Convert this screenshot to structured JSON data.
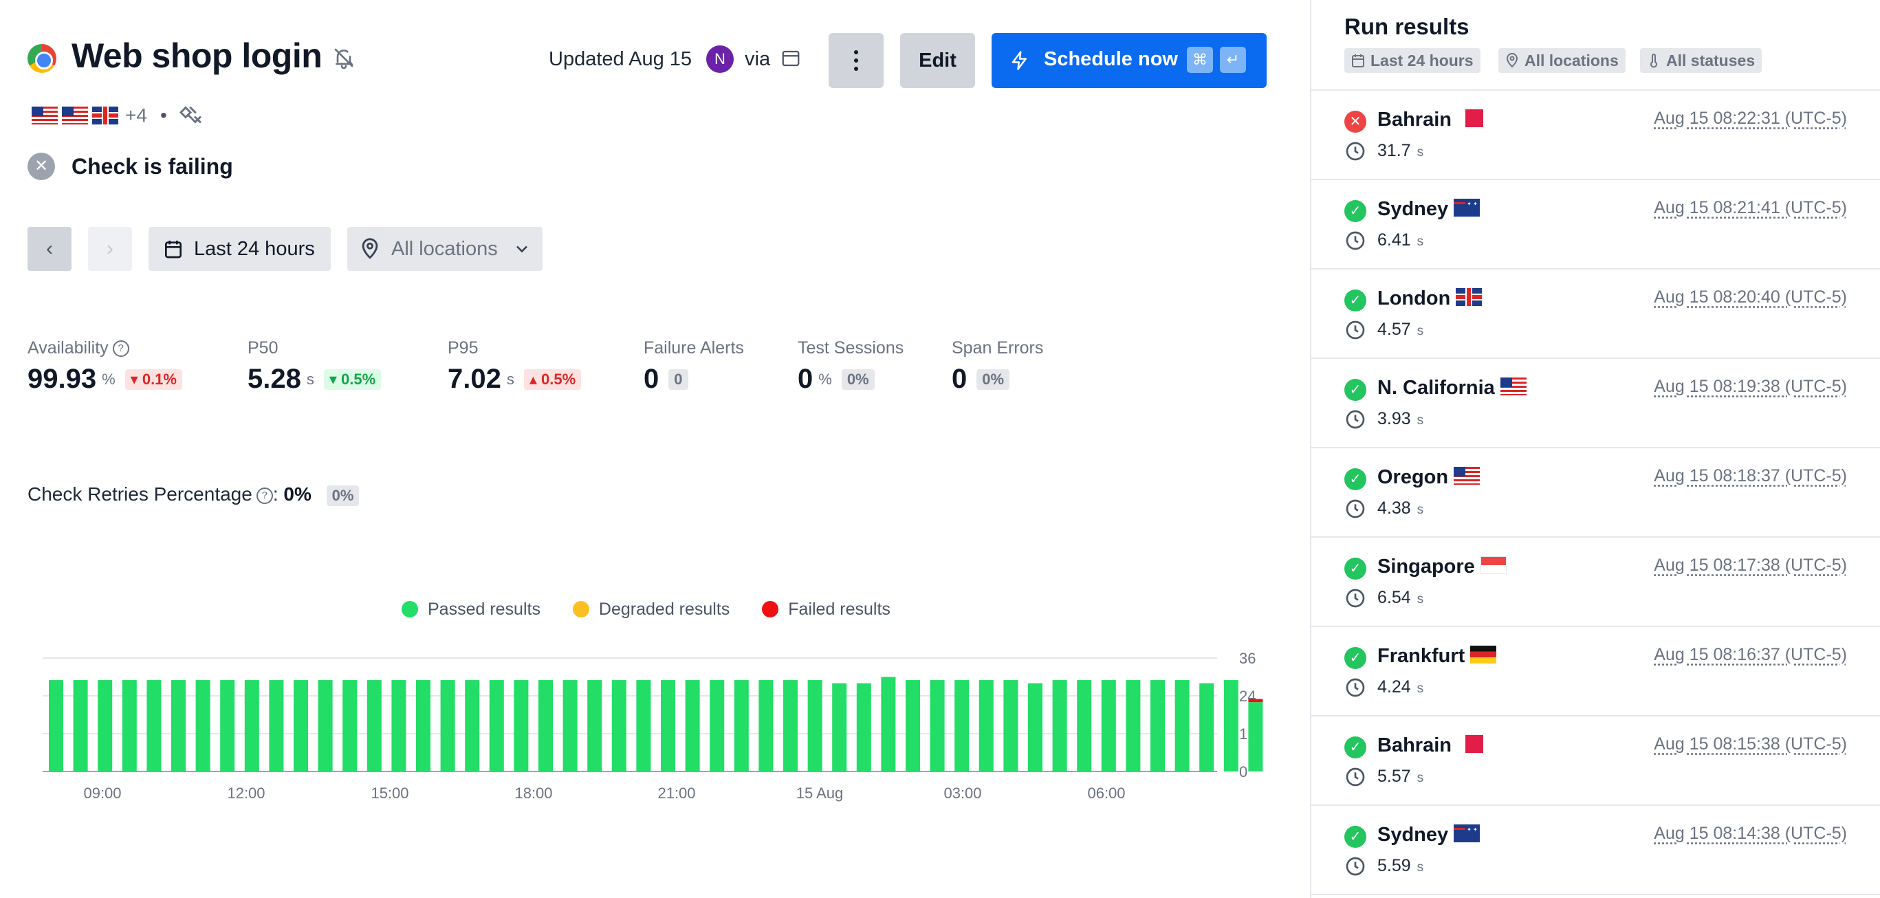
{
  "header": {
    "title": "Web shop login",
    "browser_icon": "chrome-icon",
    "updated": "Updated Aug 15",
    "avatar_initial": "N",
    "via": "via",
    "edit_label": "Edit",
    "schedule_label": "Schedule now",
    "schedule_shortcut": [
      "⌘",
      "↵"
    ],
    "more_flags": "+4",
    "separator": "•"
  },
  "status": {
    "text": "Check is failing",
    "icon": "x-icon"
  },
  "filters": {
    "range": "Last 24 hours",
    "location": "All locations"
  },
  "metrics": [
    {
      "label": "Availability",
      "value": "99.93",
      "unit": "%",
      "delta": "0.1%",
      "delta_dir": "down",
      "delta_kind": "bad",
      "help": true
    },
    {
      "label": "P50",
      "value": "5.28",
      "unit": "s",
      "delta": "0.5%",
      "delta_dir": "down",
      "delta_kind": "good"
    },
    {
      "label": "P95",
      "value": "7.02",
      "unit": "s",
      "delta": "0.5%",
      "delta_dir": "up",
      "delta_kind": "bad"
    },
    {
      "label": "Failure Alerts",
      "value": "0",
      "unit": "",
      "delta": "0",
      "delta_kind": "neutral"
    },
    {
      "label": "Test Sessions",
      "value": "0",
      "unit": "%",
      "delta": "0%",
      "delta_kind": "neutral"
    },
    {
      "label": "Span Errors",
      "value": "0",
      "unit": "",
      "delta": "0%",
      "delta_kind": "neutral"
    }
  ],
  "retries": {
    "label": "Check Retries Percentage",
    "colon": ":",
    "value": "0%",
    "badge": "0%"
  },
  "colors": {
    "passed": "#22dd66",
    "degraded": "#fbbf24",
    "failed": "#ef1111",
    "accent": "#0b6bf0"
  },
  "chart_data": {
    "type": "bar",
    "stacked": true,
    "legend": [
      {
        "name": "Passed results",
        "color": "#22dd66"
      },
      {
        "name": "Degraded results",
        "color": "#fbbf24"
      },
      {
        "name": "Failed results",
        "color": "#ef1111"
      }
    ],
    "x_ticks": [
      "09:00",
      "12:00",
      "15:00",
      "18:00",
      "21:00",
      "15 Aug",
      "03:00",
      "06:00"
    ],
    "y_ticks": [
      0,
      12,
      24,
      36
    ],
    "ylim": [
      0,
      36
    ],
    "grid": true,
    "series": [
      {
        "name": "Passed results",
        "values": [
          29,
          29,
          29,
          29,
          29,
          29,
          29,
          29,
          29,
          29,
          29,
          29,
          29,
          29,
          29,
          29,
          29,
          29,
          29,
          29,
          29,
          29,
          29,
          29,
          29,
          29,
          29,
          29,
          29,
          29,
          29,
          29,
          28,
          28,
          30,
          29,
          29,
          29,
          29,
          29,
          28,
          29,
          29,
          29,
          29,
          29,
          29,
          28,
          29,
          22
        ]
      },
      {
        "name": "Degraded results",
        "values": [
          0,
          0,
          0,
          0,
          0,
          0,
          0,
          0,
          0,
          0,
          0,
          0,
          0,
          0,
          0,
          0,
          0,
          0,
          0,
          0,
          0,
          0,
          0,
          0,
          0,
          0,
          0,
          0,
          0,
          0,
          0,
          0,
          0,
          0,
          0,
          0,
          0,
          0,
          0,
          0,
          0,
          0,
          0,
          0,
          0,
          0,
          0,
          0,
          0,
          0
        ]
      },
      {
        "name": "Failed results",
        "values": [
          0,
          0,
          0,
          0,
          0,
          0,
          0,
          0,
          0,
          0,
          0,
          0,
          0,
          0,
          0,
          0,
          0,
          0,
          0,
          0,
          0,
          0,
          0,
          0,
          0,
          0,
          0,
          0,
          0,
          0,
          0,
          0,
          0,
          0,
          0,
          0,
          0,
          0,
          0,
          0,
          0,
          0,
          0,
          0,
          0,
          0,
          0,
          0,
          0,
          1
        ]
      }
    ]
  },
  "sidebar": {
    "title": "Run results",
    "chips": [
      "Last 24 hours",
      "All locations",
      "All statuses"
    ],
    "runs": [
      {
        "location": "Bahrain",
        "flag": "bh",
        "status": "fail",
        "duration": "31.7",
        "unit": "s",
        "timestamp": "Aug 15 08:22:31 (UTC-5)"
      },
      {
        "location": "Sydney",
        "flag": "au",
        "status": "pass",
        "duration": "6.41",
        "unit": "s",
        "timestamp": "Aug 15 08:21:41 (UTC-5)"
      },
      {
        "location": "London",
        "flag": "gb",
        "status": "pass",
        "duration": "4.57",
        "unit": "s",
        "timestamp": "Aug 15 08:20:40 (UTC-5)"
      },
      {
        "location": "N. California",
        "flag": "us",
        "status": "pass",
        "duration": "3.93",
        "unit": "s",
        "timestamp": "Aug 15 08:19:38 (UTC-5)"
      },
      {
        "location": "Oregon",
        "flag": "us",
        "status": "pass",
        "duration": "4.38",
        "unit": "s",
        "timestamp": "Aug 15 08:18:37 (UTC-5)"
      },
      {
        "location": "Singapore",
        "flag": "sg",
        "status": "pass",
        "duration": "6.54",
        "unit": "s",
        "timestamp": "Aug 15 08:17:38 (UTC-5)"
      },
      {
        "location": "Frankfurt",
        "flag": "de",
        "status": "pass",
        "duration": "4.24",
        "unit": "s",
        "timestamp": "Aug 15 08:16:37 (UTC-5)"
      },
      {
        "location": "Bahrain",
        "flag": "bh",
        "status": "pass",
        "duration": "5.57",
        "unit": "s",
        "timestamp": "Aug 15 08:15:38 (UTC-5)"
      },
      {
        "location": "Sydney",
        "flag": "au",
        "status": "pass",
        "duration": "5.59",
        "unit": "s",
        "timestamp": "Aug 15 08:14:38 (UTC-5)"
      }
    ]
  }
}
